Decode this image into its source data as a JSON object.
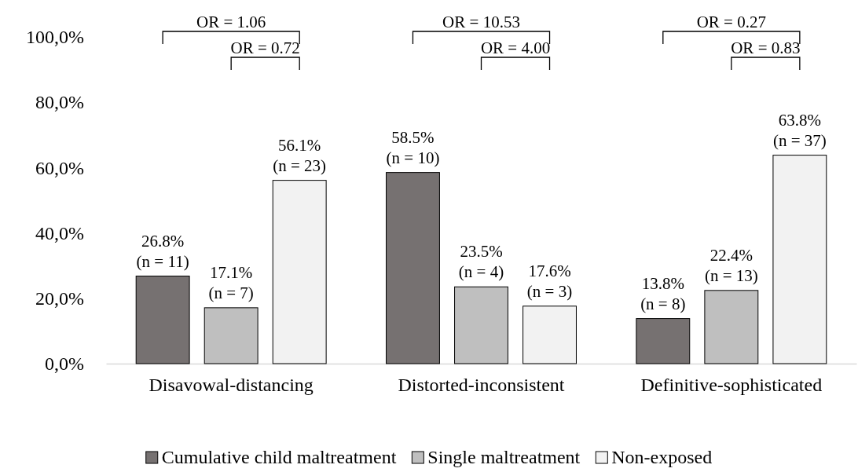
{
  "chart_data": {
    "type": "bar",
    "categories": [
      "Disavowal-distancing",
      "Distorted-inconsistent",
      "Definitive-sophisticated"
    ],
    "series": [
      {
        "name": "Cumulative child maltreatment",
        "color": "#767171",
        "values": [
          26.8,
          58.5,
          13.8
        ],
        "value_labels": [
          "26.8%\n(n = 11)",
          "58.5%\n(n = 10)",
          "13.8%\n(n = 8)"
        ]
      },
      {
        "name": "Single maltreatment",
        "color": "#bfbfbf",
        "values": [
          17.1,
          23.5,
          22.4
        ],
        "value_labels": [
          "17.1%\n(n = 7)",
          "23.5%\n(n = 4)",
          "22.4%\n(n = 13)"
        ]
      },
      {
        "name": "Non-exposed",
        "color": "#f2f2f2",
        "values": [
          56.1,
          17.6,
          63.8
        ],
        "value_labels": [
          "56.1%\n(n = 23)",
          "17.6%\n(n = 3)",
          "63.8%\n(n = 37)"
        ]
      }
    ],
    "ylim": [
      0,
      100
    ],
    "yticks": [
      {
        "value": 0,
        "label": "0,0%"
      },
      {
        "value": 20,
        "label": "20,0%"
      },
      {
        "value": 40,
        "label": "40,0%"
      },
      {
        "value": 60,
        "label": "60,0%"
      },
      {
        "value": 80,
        "label": "80,0%"
      },
      {
        "value": 100,
        "label": "100,0%"
      }
    ],
    "annotations": [
      "OR = 1.06",
      "OR = 0.72",
      "OR = 10.53",
      "OR = 4.00",
      "OR = 0.27",
      "OR = 0.83"
    ],
    "legend": "bottom"
  }
}
